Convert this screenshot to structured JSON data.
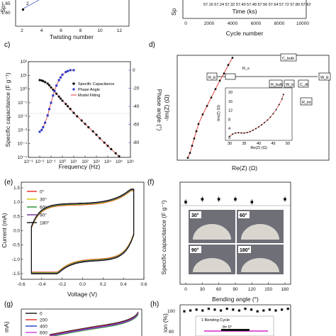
{
  "panel_labels": [
    "c)",
    "d)",
    "(e)",
    "(f)",
    "(g)",
    "(h)"
  ],
  "chart_data": [
    {
      "panel": "top-left",
      "type": "scatter",
      "xlabel": "Twisting number",
      "ylabel": "Sp",
      "x_ticks": [
        "2",
        "4",
        "6",
        "8",
        "10",
        "12"
      ],
      "y_ticks": [
        "1.65",
        "1.60"
      ],
      "x": [
        2
      ],
      "y": [
        1.63
      ],
      "annotation": "2"
    },
    {
      "panel": "top-right",
      "type": "line",
      "xlabel": "Time (ks)",
      "x2label": "Cycle number",
      "ylabel": "Sp",
      "x_ticks": [
        "0",
        "2000",
        "4000",
        "6000",
        "8000",
        "10000"
      ],
      "time_labels": "57.16  57.24  57.32  57.40  57.48  57.56  57.64  57.72  57.80  57.92"
    },
    {
      "panel": "c",
      "type": "scatter",
      "xlabel": "Frequency (Hz)",
      "ylabel": "Specific capacitance (F g⁻¹)",
      "y2label": "Phase angle (°)",
      "xscale": "log",
      "yscale": "log",
      "x_ticks": [
        "10⁻³",
        "10⁻²",
        "10⁻¹",
        "10⁰",
        "10¹",
        "10²",
        "10³",
        "10⁴",
        "10⁵",
        "10⁶"
      ],
      "y_ticks": [
        "10²",
        "10¹",
        "10⁰",
        "10⁻¹",
        "10⁻²",
        "10⁻³",
        "10⁻⁴",
        "10⁻⁵"
      ],
      "y2_ticks": [
        "0",
        "-20",
        "-40",
        "-60",
        "-80"
      ],
      "legend": [
        "Specific Capacitance",
        "Phase Angle",
        "Model Fitting"
      ],
      "legend_position": "top-right",
      "series": [
        {
          "name": "Specific Capacitance",
          "x": [
            0.01,
            0.015,
            0.02,
            0.03,
            0.05,
            0.07,
            0.1,
            0.15,
            0.2,
            0.3,
            0.5,
            0.7,
            1,
            2,
            3,
            5,
            10,
            20,
            50,
            100,
            200,
            500,
            1000,
            2000,
            5000,
            10000,
            20000,
            50000,
            100000
          ],
          "y": [
            4.5,
            4.2,
            3.8,
            3.2,
            2.5,
            1.9,
            1.3,
            0.9,
            0.7,
            0.45,
            0.28,
            0.2,
            0.14,
            0.08,
            0.055,
            0.035,
            0.018,
            0.01,
            0.005,
            0.0028,
            0.0016,
            0.0008,
            0.00045,
            0.00025,
            0.00012,
            7e-05,
            4e-05,
            2e-05,
            1.2e-05
          ]
        },
        {
          "name": "Phase Angle",
          "x": [
            0.01,
            0.015,
            0.02,
            0.03,
            0.05,
            0.07,
            0.1,
            0.15,
            0.2,
            0.3,
            0.5,
            0.7,
            1,
            2,
            3,
            5,
            10
          ],
          "y": [
            -68,
            -66,
            -63,
            -58,
            -50,
            -43,
            -36,
            -28,
            -23,
            -17,
            -11,
            -8,
            -5,
            -2,
            -1,
            0,
            0
          ]
        }
      ]
    },
    {
      "panel": "d",
      "type": "scatter",
      "xlabel": "Re(Z) (Ω)",
      "ylabel": "-Im(Z) (Ω)",
      "inset": {
        "xlabel": "Re(Z) (Ω)",
        "ylabel": "-Im(Z) (Ω)",
        "x_ticks": [
          "30",
          "35",
          "40",
          "45",
          "50"
        ],
        "y_ticks": [
          "0",
          "4",
          "8",
          "12",
          "16",
          "20"
        ],
        "x": [
          30,
          31,
          32,
          33,
          34,
          35,
          36,
          37,
          38,
          39,
          40,
          41,
          42,
          43,
          44,
          45,
          46,
          47,
          48,
          48.5
        ],
        "y": [
          0.5,
          1.5,
          2.0,
          2.1,
          2.0,
          2.0,
          2.2,
          2.6,
          3.2,
          3.9,
          4.7,
          5.6,
          6.6,
          7.7,
          9.0,
          10.5,
          12.3,
          14.5,
          17.0,
          19.0
        ]
      },
      "circuit_labels": [
        "R_E",
        "R_s",
        "C_bulk",
        "R_bulk",
        "W_b",
        "C_dl",
        "R_int",
        "W_E"
      ],
      "x": [
        50,
        60,
        70,
        80,
        90,
        100,
        120,
        140,
        160,
        180,
        200,
        220,
        240,
        260
      ],
      "y": [
        20,
        60,
        120,
        180,
        240,
        300,
        380,
        450,
        520,
        590,
        660,
        720,
        790,
        850
      ]
    },
    {
      "panel": "e",
      "type": "line",
      "xlabel": "Voltage (V)",
      "ylabel": "Current (mA)",
      "x_ticks": [
        "-0.6",
        "-0.4",
        "-0.2",
        "0.0",
        "0.2",
        "0.4",
        "0.6"
      ],
      "y_ticks": [
        "1.5",
        "1.0",
        "0.5",
        "0.0",
        "-0.5",
        "-1.0",
        "-1.5"
      ],
      "xlim": [
        -0.6,
        0.6
      ],
      "ylim": [
        -1.7,
        1.7
      ],
      "series": [
        {
          "name": "0°",
          "color": "#e8281f"
        },
        {
          "name": "30°",
          "color": "#d5c400"
        },
        {
          "name": "60°",
          "color": "#1e8f2e"
        },
        {
          "name": "90°",
          "color": "#6a2c91"
        },
        {
          "name": "180°",
          "color": "#111111"
        }
      ]
    },
    {
      "panel": "f",
      "type": "scatter",
      "xlabel": "Bending angle (°)",
      "ylabel": "Specific capacitance (F g⁻¹)",
      "x_ticks": [
        "0",
        "30",
        "60",
        "90",
        "120",
        "150",
        "180"
      ],
      "x": [
        0,
        30,
        60,
        90,
        120,
        180
      ],
      "y": [
        1.66,
        1.67,
        1.67,
        1.67,
        1.66,
        1.67
      ],
      "photo_labels": [
        "30°",
        "60°",
        "90°",
        "180°"
      ]
    },
    {
      "panel": "g",
      "type": "line",
      "ylabel": "mA)",
      "series": [
        {
          "name": "0",
          "color": "#111111"
        },
        {
          "name": "200",
          "color": "#e8281f"
        },
        {
          "name": "400",
          "color": "#1f3cc9"
        },
        {
          "name": "600",
          "color": "#d03be0"
        },
        {
          "name": "",
          "color": "#1e8f2e"
        }
      ]
    },
    {
      "panel": "h",
      "type": "scatter",
      "ylabel": "ion (%)",
      "y_ticks": [
        "100",
        "80"
      ],
      "x": [
        1,
        2,
        3,
        4,
        5,
        6,
        7,
        8,
        9,
        10,
        11,
        12,
        13,
        14,
        15,
        16,
        17,
        18
      ],
      "y": [
        99,
        100,
        101,
        100,
        102,
        101,
        100,
        102,
        101,
        100,
        102,
        101,
        99,
        100,
        101,
        100,
        101,
        102
      ],
      "inset_label": "1 Bending Cycle",
      "inset_sub": "θ= 0°"
    }
  ]
}
